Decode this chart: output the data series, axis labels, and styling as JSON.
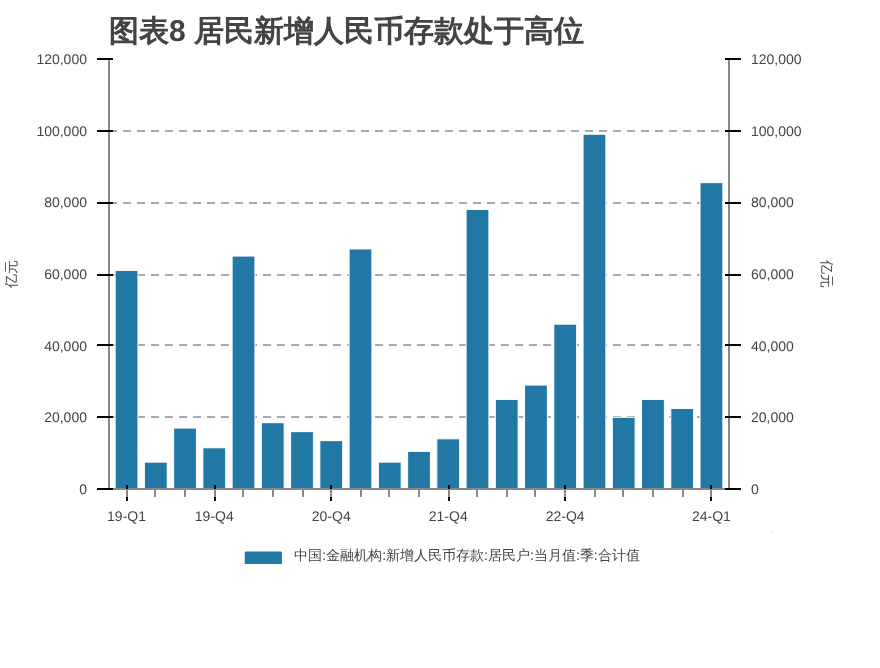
{
  "chart_data": {
    "type": "bar",
    "title": "图表8 居民新增人民币存款处于高位",
    "ylabel": "亿元",
    "y2label": "亿元",
    "categories": [
      "19-Q1",
      null,
      null,
      "19-Q4",
      null,
      null,
      null,
      "20-Q4",
      null,
      null,
      null,
      "21-Q4",
      null,
      null,
      null,
      "22-Q4",
      null,
      null,
      null,
      null,
      "24-Q1"
    ],
    "series": [
      {
        "name": "中国:金融机构:新增人民币存款:居民户:当月值:季:合计值",
        "color": "#2278a5",
        "values": [
          61000,
          7500,
          17000,
          11500,
          65000,
          18500,
          16000,
          13500,
          67000,
          7500,
          10500,
          14000,
          78000,
          25000,
          29000,
          46000,
          99000,
          20000,
          25000,
          22500,
          85500
        ]
      }
    ],
    "ylim": [
      0,
      120000
    ],
    "yticks": [
      {
        "value": 0,
        "label": "0"
      },
      {
        "value": 20000,
        "label": "20,000"
      },
      {
        "value": 40000,
        "label": "40,000"
      },
      {
        "value": 60000,
        "label": "60,000"
      },
      {
        "value": 80000,
        "label": "80,000"
      },
      {
        "value": 100000,
        "label": "100,000"
      },
      {
        "value": 120000,
        "label": "120,000"
      }
    ],
    "y2lim": [
      0,
      120000
    ],
    "y2ticks": [
      {
        "value": 0,
        "label": "0"
      },
      {
        "value": 20000,
        "label": "20,000"
      },
      {
        "value": 40000,
        "label": "40,000"
      },
      {
        "value": 60000,
        "label": "60,000"
      },
      {
        "value": 80000,
        "label": "80,000"
      },
      {
        "value": 100000,
        "label": "100,000"
      },
      {
        "value": 120000,
        "label": "120,000"
      }
    ],
    "grid": "y",
    "legend": "bottom"
  }
}
